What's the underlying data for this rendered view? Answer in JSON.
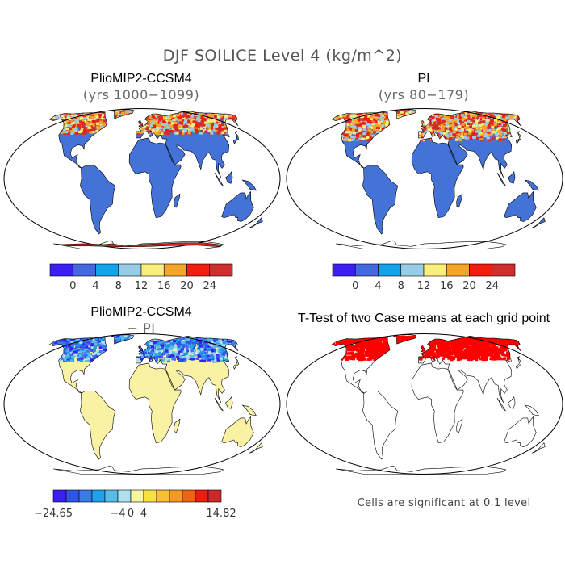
{
  "figure": {
    "title": "DJF SOILICE Level 4 (kg/m^2)"
  },
  "panels": [
    {
      "title": "PlioMIP2-CCSM4",
      "subtitle": "(yrs 1000−1099)"
    },
    {
      "title": "PI",
      "subtitle": "(yrs 80−179)"
    },
    {
      "title": "PlioMIP2-CCSM4",
      "subtitle": "− PI"
    },
    {
      "title": "T-Test of two Case means at each grid point",
      "subtitle": ""
    }
  ],
  "colorbars": {
    "abs": {
      "colors": [
        "#3b1ff2",
        "#4468df",
        "#12a3ea",
        "#98cde8",
        "#f8f07a",
        "#f5a52a",
        "#f01e0f",
        "#cf2e2e"
      ],
      "labels": [
        "0",
        "4",
        "8",
        "12",
        "16",
        "20",
        "24"
      ]
    },
    "diff": {
      "colors": [
        "#3b1ff2",
        "#2f55e6",
        "#3a7ae8",
        "#1ea0ea",
        "#55bde8",
        "#aee0ef",
        "#faf5a2",
        "#fbe13e",
        "#f9c030",
        "#f39a24",
        "#ee6414",
        "#ee1c0c",
        "#cc2a2a"
      ],
      "labels": [
        "−24.65",
        "−4",
        "0",
        "4",
        "14.82"
      ]
    }
  },
  "significance_note": "Cells are significant at 0.1 level",
  "colors": {
    "land": "#4472d6",
    "diff_land": "#f9f1a3",
    "significant": "#ff0000",
    "outline": "#000000"
  }
}
